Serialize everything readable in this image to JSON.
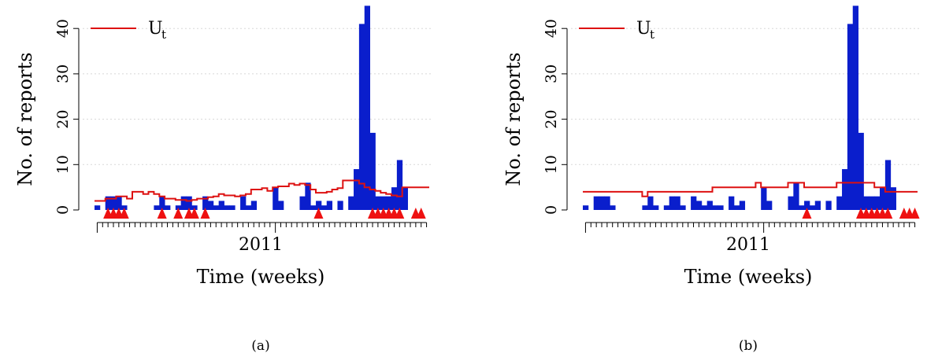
{
  "figure": {
    "panels": [
      {
        "caption": "(a)"
      },
      {
        "caption": "(b)"
      }
    ]
  },
  "colors": {
    "bars": "#0A1ECC",
    "threshold": "#DD1111",
    "alarm": "#EE1111",
    "grid": "#D8D8D8"
  },
  "chart_data": [
    {
      "type": "bar",
      "xlabel": "Time (weeks)",
      "ylabel": "No. of reports",
      "x_tick_label": "2011",
      "yticks": [
        0,
        10,
        20,
        30,
        40
      ],
      "ylim": [
        0,
        45
      ],
      "grid": "horizontal dotted",
      "legend": {
        "position": "top-left",
        "entries": [
          {
            "label": "U",
            "subscript": "t"
          }
        ]
      },
      "weeks": [
        1,
        2,
        3,
        4,
        5,
        6,
        7,
        8,
        9,
        10,
        11,
        12,
        13,
        14,
        15,
        16,
        17,
        18,
        19,
        20,
        21,
        22,
        23,
        24,
        25,
        26,
        27,
        28,
        29,
        30,
        31,
        32,
        33,
        34,
        35,
        36,
        37,
        38,
        39,
        40,
        41,
        42,
        43,
        44,
        45,
        46,
        47,
        48,
        49,
        50,
        51,
        52,
        53,
        54,
        55,
        56,
        57,
        58,
        59,
        60,
        61,
        62
      ],
      "series": [
        {
          "kind": "bar",
          "values": [
            1,
            0,
            3,
            3,
            3,
            1,
            0,
            0,
            0,
            0,
            0,
            1,
            3,
            1,
            0,
            1,
            3,
            3,
            1,
            0,
            3,
            2,
            1,
            2,
            1,
            1,
            0,
            3,
            1,
            2,
            0,
            0,
            0,
            5,
            2,
            0,
            0,
            0,
            3,
            6,
            1,
            2,
            1,
            2,
            0,
            2,
            0,
            3,
            9,
            41,
            45,
            17,
            3,
            3,
            3,
            5,
            11,
            5,
            0,
            0,
            0,
            0
          ]
        },
        {
          "kind": "step",
          "legend_label": "U",
          "values": [
            2,
            2,
            2.5,
            2.5,
            3,
            3,
            2.5,
            4,
            4,
            3.5,
            4,
            3.5,
            3,
            2.5,
            2.5,
            2.2,
            2.2,
            2,
            2.2,
            2.5,
            2.5,
            2.8,
            3,
            3.5,
            3.2,
            3.2,
            3,
            3.2,
            3.5,
            4.5,
            4.5,
            4.8,
            4.2,
            5,
            5.2,
            5.2,
            5.8,
            5.5,
            5.8,
            5.5,
            4.5,
            3.8,
            3.8,
            4,
            4.5,
            4.8,
            6.5,
            6.5,
            6.5,
            5.8,
            5,
            4.5,
            4.2,
            3.8,
            3.5,
            3.2,
            3,
            5,
            5,
            5,
            5,
            5
          ]
        }
      ],
      "alarm_weeks": [
        3,
        4,
        5,
        6,
        13,
        16,
        18,
        19,
        21,
        42,
        52,
        53,
        54,
        55,
        56,
        57,
        60,
        61
      ]
    },
    {
      "type": "bar",
      "xlabel": "Time (weeks)",
      "ylabel": "No. of reports",
      "x_tick_label": "2011",
      "yticks": [
        0,
        10,
        20,
        30,
        40
      ],
      "ylim": [
        0,
        45
      ],
      "grid": "horizontal dotted",
      "legend": {
        "position": "top-left",
        "entries": [
          {
            "label": "U",
            "subscript": "t"
          }
        ]
      },
      "weeks": [
        1,
        2,
        3,
        4,
        5,
        6,
        7,
        8,
        9,
        10,
        11,
        12,
        13,
        14,
        15,
        16,
        17,
        18,
        19,
        20,
        21,
        22,
        23,
        24,
        25,
        26,
        27,
        28,
        29,
        30,
        31,
        32,
        33,
        34,
        35,
        36,
        37,
        38,
        39,
        40,
        41,
        42,
        43,
        44,
        45,
        46,
        47,
        48,
        49,
        50,
        51,
        52,
        53,
        54,
        55,
        56,
        57,
        58,
        59,
        60,
        61,
        62
      ],
      "series": [
        {
          "kind": "bar",
          "values": [
            1,
            0,
            3,
            3,
            3,
            1,
            0,
            0,
            0,
            0,
            0,
            1,
            3,
            1,
            0,
            1,
            3,
            3,
            1,
            0,
            3,
            2,
            1,
            2,
            1,
            1,
            0,
            3,
            1,
            2,
            0,
            0,
            0,
            5,
            2,
            0,
            0,
            0,
            3,
            6,
            1,
            2,
            1,
            2,
            0,
            2,
            0,
            3,
            9,
            41,
            45,
            17,
            3,
            3,
            3,
            5,
            11,
            5,
            0,
            0,
            0,
            0
          ]
        },
        {
          "kind": "step",
          "legend_label": "U",
          "values": [
            4,
            4,
            4,
            4,
            4,
            4,
            4,
            4,
            4,
            4,
            4,
            3,
            4,
            4,
            4,
            4,
            4,
            4,
            4,
            4,
            4,
            4,
            4,
            4,
            5,
            5,
            5,
            5,
            5,
            5,
            5,
            5,
            6,
            5,
            5,
            5,
            5,
            5,
            6,
            6,
            6,
            5,
            5,
            5,
            5,
            5,
            5,
            6,
            6,
            6,
            6,
            6,
            6,
            6,
            5,
            5,
            4,
            4,
            4,
            4,
            4,
            4
          ]
        }
      ],
      "alarm_weeks": [
        42,
        52,
        53,
        54,
        55,
        56,
        57,
        60,
        61,
        62
      ]
    }
  ]
}
